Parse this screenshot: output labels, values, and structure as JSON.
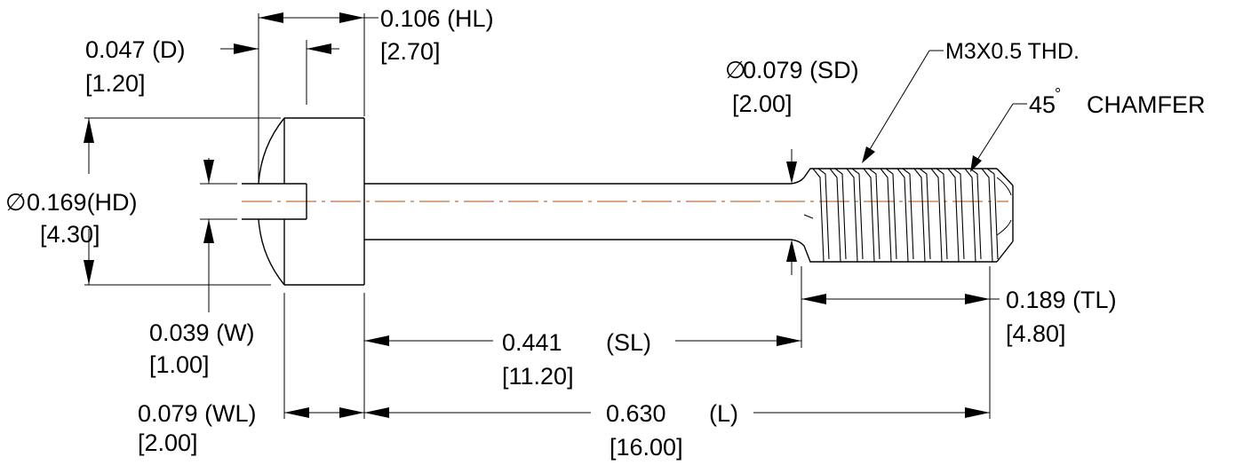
{
  "dimensions": {
    "hl": {
      "imperial": "0.106 (HL)",
      "metric": "[2.70]"
    },
    "d": {
      "imperial": "0.047 (D)",
      "metric": "[1.20]"
    },
    "thread": {
      "callout": "M3X0.5 THD."
    },
    "sd": {
      "imperial": "0.079 (SD)",
      "metric": "[2.00]"
    },
    "chamfer": {
      "angle": "45",
      "label": "CHAMFER"
    },
    "hd": {
      "imperial": "0.169(HD)",
      "metric": "[4.30]"
    },
    "w": {
      "imperial": "0.039 (W)",
      "metric": "[1.00]"
    },
    "tl": {
      "imperial": "0.189 (TL)",
      "metric": "[4.80]"
    },
    "sl": {
      "imperial": "0.441",
      "tag": "(SL)",
      "metric": "[11.20]"
    },
    "wl": {
      "imperial": "0.079 (WL)",
      "metric": "[2.00]"
    },
    "l": {
      "imperial": "0.630",
      "tag": "(L)",
      "metric": "[16.00]"
    }
  },
  "symbols": {
    "diameter": "∅",
    "degree": "°"
  },
  "colors": {
    "line": "#000000",
    "centerline": "#c0703a",
    "background": "#ffffff"
  }
}
